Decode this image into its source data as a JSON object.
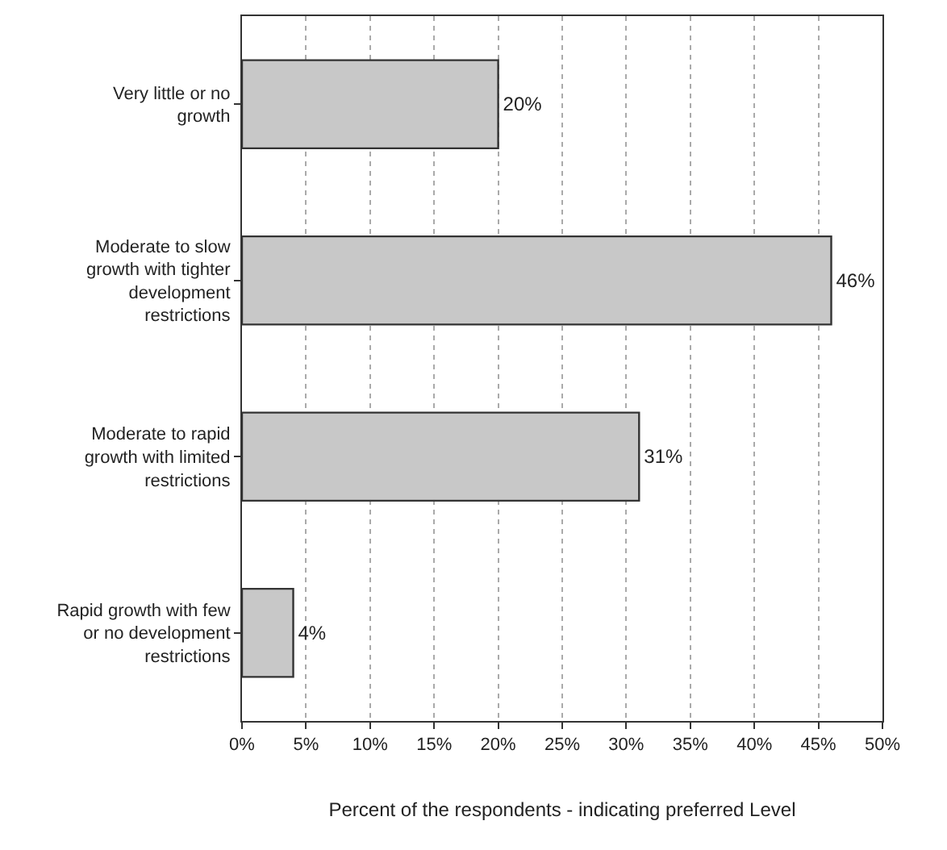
{
  "chart_data": {
    "type": "bar",
    "orientation": "horizontal",
    "xlabel": "Percent of the respondents - indicating preferred Level",
    "categories": [
      "Very little or no growth",
      "Moderate to slow growth with tighter development restrictions",
      "Moderate to rapid growth with limited restrictions",
      "Rapid growth with few or no development restrictions"
    ],
    "values": [
      20,
      46,
      31,
      4
    ],
    "value_labels": [
      "20%",
      "46%",
      "31%",
      "4%"
    ],
    "color": "#c8c8c8",
    "xlim": [
      0,
      50
    ],
    "xticks": [
      {
        "value": 0,
        "label": "0%"
      },
      {
        "value": 5,
        "label": "5%"
      },
      {
        "value": 10,
        "label": "10%"
      },
      {
        "value": 15,
        "label": "15%"
      },
      {
        "value": 20,
        "label": "20%"
      },
      {
        "value": 25,
        "label": "25%"
      },
      {
        "value": 30,
        "label": "30%"
      },
      {
        "value": 35,
        "label": "35%"
      },
      {
        "value": 40,
        "label": "40%"
      },
      {
        "value": 45,
        "label": "45%"
      },
      {
        "value": 50,
        "label": "50%"
      }
    ],
    "grid": "x"
  }
}
